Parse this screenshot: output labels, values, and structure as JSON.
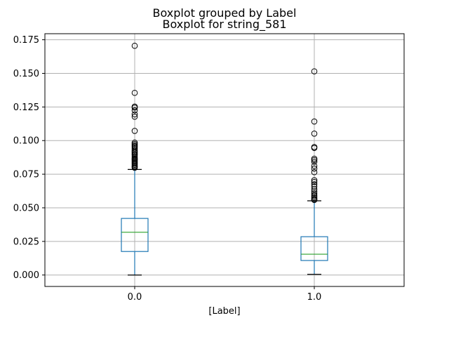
{
  "chart_data": {
    "type": "boxplot",
    "suptitle": "Boxplot grouped by Label",
    "title": "Boxplot for string_581",
    "xlabel": "[Label]",
    "ylabel": "",
    "ylim": [
      -0.0085,
      0.1795
    ],
    "yticks": [
      0.0,
      0.025,
      0.05,
      0.075,
      0.1,
      0.125,
      0.15,
      0.175
    ],
    "ytick_labels": [
      "0.000",
      "0.025",
      "0.050",
      "0.075",
      "0.100",
      "0.125",
      "0.150",
      "0.175"
    ],
    "grid": true,
    "colors": {
      "box": "#1f77b4",
      "median": "#2ca02c",
      "grid": "#b0b0b0",
      "flier": "#000000"
    },
    "categories": [
      "0.0",
      "1.0"
    ],
    "boxes": [
      {
        "category": "0.0",
        "whisker_low": 0.0,
        "q1": 0.0175,
        "median": 0.0318,
        "q3": 0.0421,
        "whisker_high": 0.0785,
        "outliers": [
          0.1705,
          0.1355,
          0.1253,
          0.1245,
          0.1225,
          0.1195,
          0.1178,
          0.1072,
          0.0985,
          0.0975,
          0.0965,
          0.0958,
          0.095,
          0.094,
          0.0928,
          0.0918,
          0.091,
          0.09,
          0.0892,
          0.0882,
          0.0872,
          0.0865,
          0.0858,
          0.085,
          0.0842,
          0.0835,
          0.0828,
          0.082,
          0.0812,
          0.0805,
          0.0798
        ]
      },
      {
        "category": "1.0",
        "whisker_low": 0.0005,
        "q1": 0.0108,
        "median": 0.0155,
        "q3": 0.0285,
        "whisker_high": 0.0552,
        "outliers": [
          0.1515,
          0.1142,
          0.1052,
          0.0952,
          0.0945,
          0.0865,
          0.0855,
          0.0842,
          0.0812,
          0.0792,
          0.0765,
          0.0705,
          0.0692,
          0.0675,
          0.0658,
          0.0638,
          0.0622,
          0.0608,
          0.0595,
          0.0585,
          0.0575,
          0.0565,
          0.0558
        ]
      }
    ]
  }
}
